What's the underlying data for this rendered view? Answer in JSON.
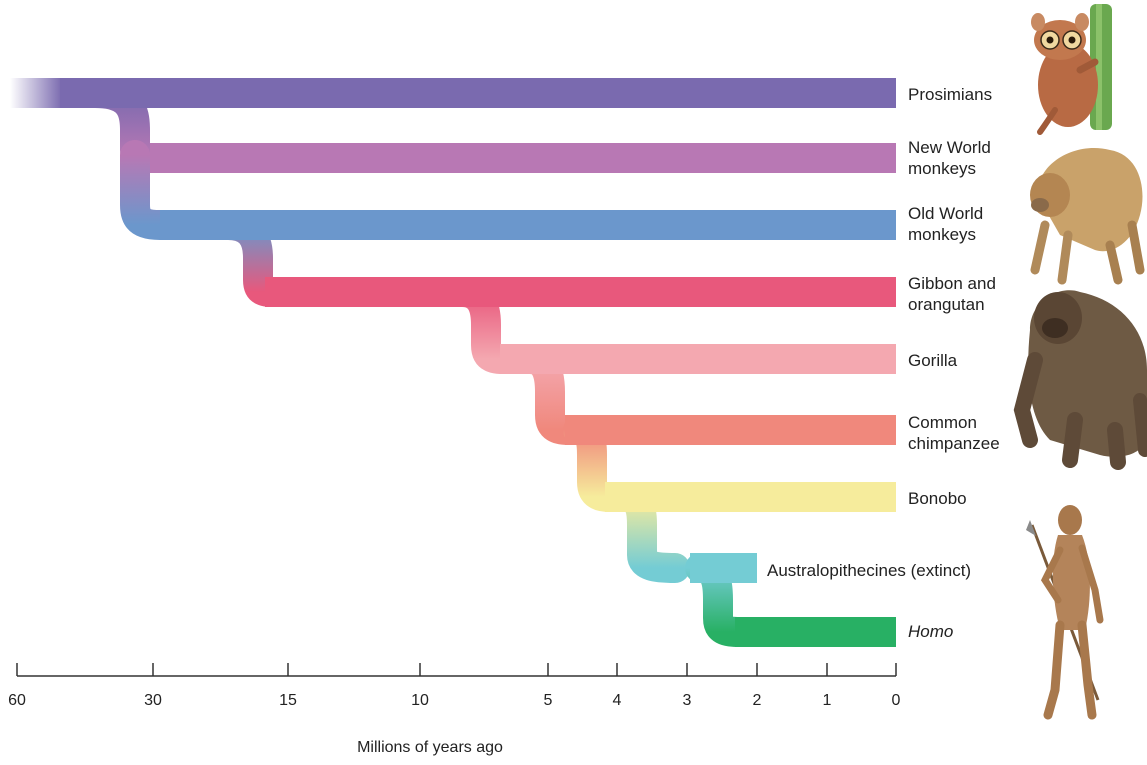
{
  "axis": {
    "title": "Millions of years ago",
    "ticks": [
      "60",
      "30",
      "15",
      "10",
      "5",
      "4",
      "3",
      "2",
      "1",
      "0"
    ]
  },
  "lineages": [
    {
      "id": "prosimians",
      "lines": [
        "Prosimians"
      ],
      "color": "#7a6aaf",
      "italic": false,
      "end_mya": 0
    },
    {
      "id": "new-world-monkeys",
      "lines": [
        "New World",
        "monkeys"
      ],
      "color": "#b878b4",
      "italic": false,
      "end_mya": 0
    },
    {
      "id": "old-world-monkeys",
      "lines": [
        "Old World",
        "monkeys"
      ],
      "color": "#6b97cc",
      "italic": false,
      "end_mya": 0
    },
    {
      "id": "gibbon-orangutan",
      "lines": [
        "Gibbon and",
        "orangutan"
      ],
      "color": "#e8587c",
      "italic": false,
      "end_mya": 0
    },
    {
      "id": "gorilla",
      "lines": [
        "Gorilla"
      ],
      "color": "#f4a8b0",
      "italic": false,
      "end_mya": 0
    },
    {
      "id": "common-chimpanzee",
      "lines": [
        "Common",
        "chimpanzee"
      ],
      "color": "#f0887c",
      "italic": false,
      "end_mya": 0
    },
    {
      "id": "bonobo",
      "lines": [
        "Bonobo"
      ],
      "color": "#f6ec9c",
      "italic": false,
      "end_mya": 0
    },
    {
      "id": "australopithecines",
      "lines": [
        "Australopithecines (extinct)"
      ],
      "color": "#74ccd4",
      "italic": false,
      "end_mya": 2
    },
    {
      "id": "homo",
      "lines": [
        "Homo"
      ],
      "color": "#28b064",
      "italic": true,
      "end_mya": 0
    }
  ],
  "illustrations": [
    "tarsier-illustration",
    "baboon-illustration",
    "gorilla-illustration",
    "hominin-illustration"
  ]
}
